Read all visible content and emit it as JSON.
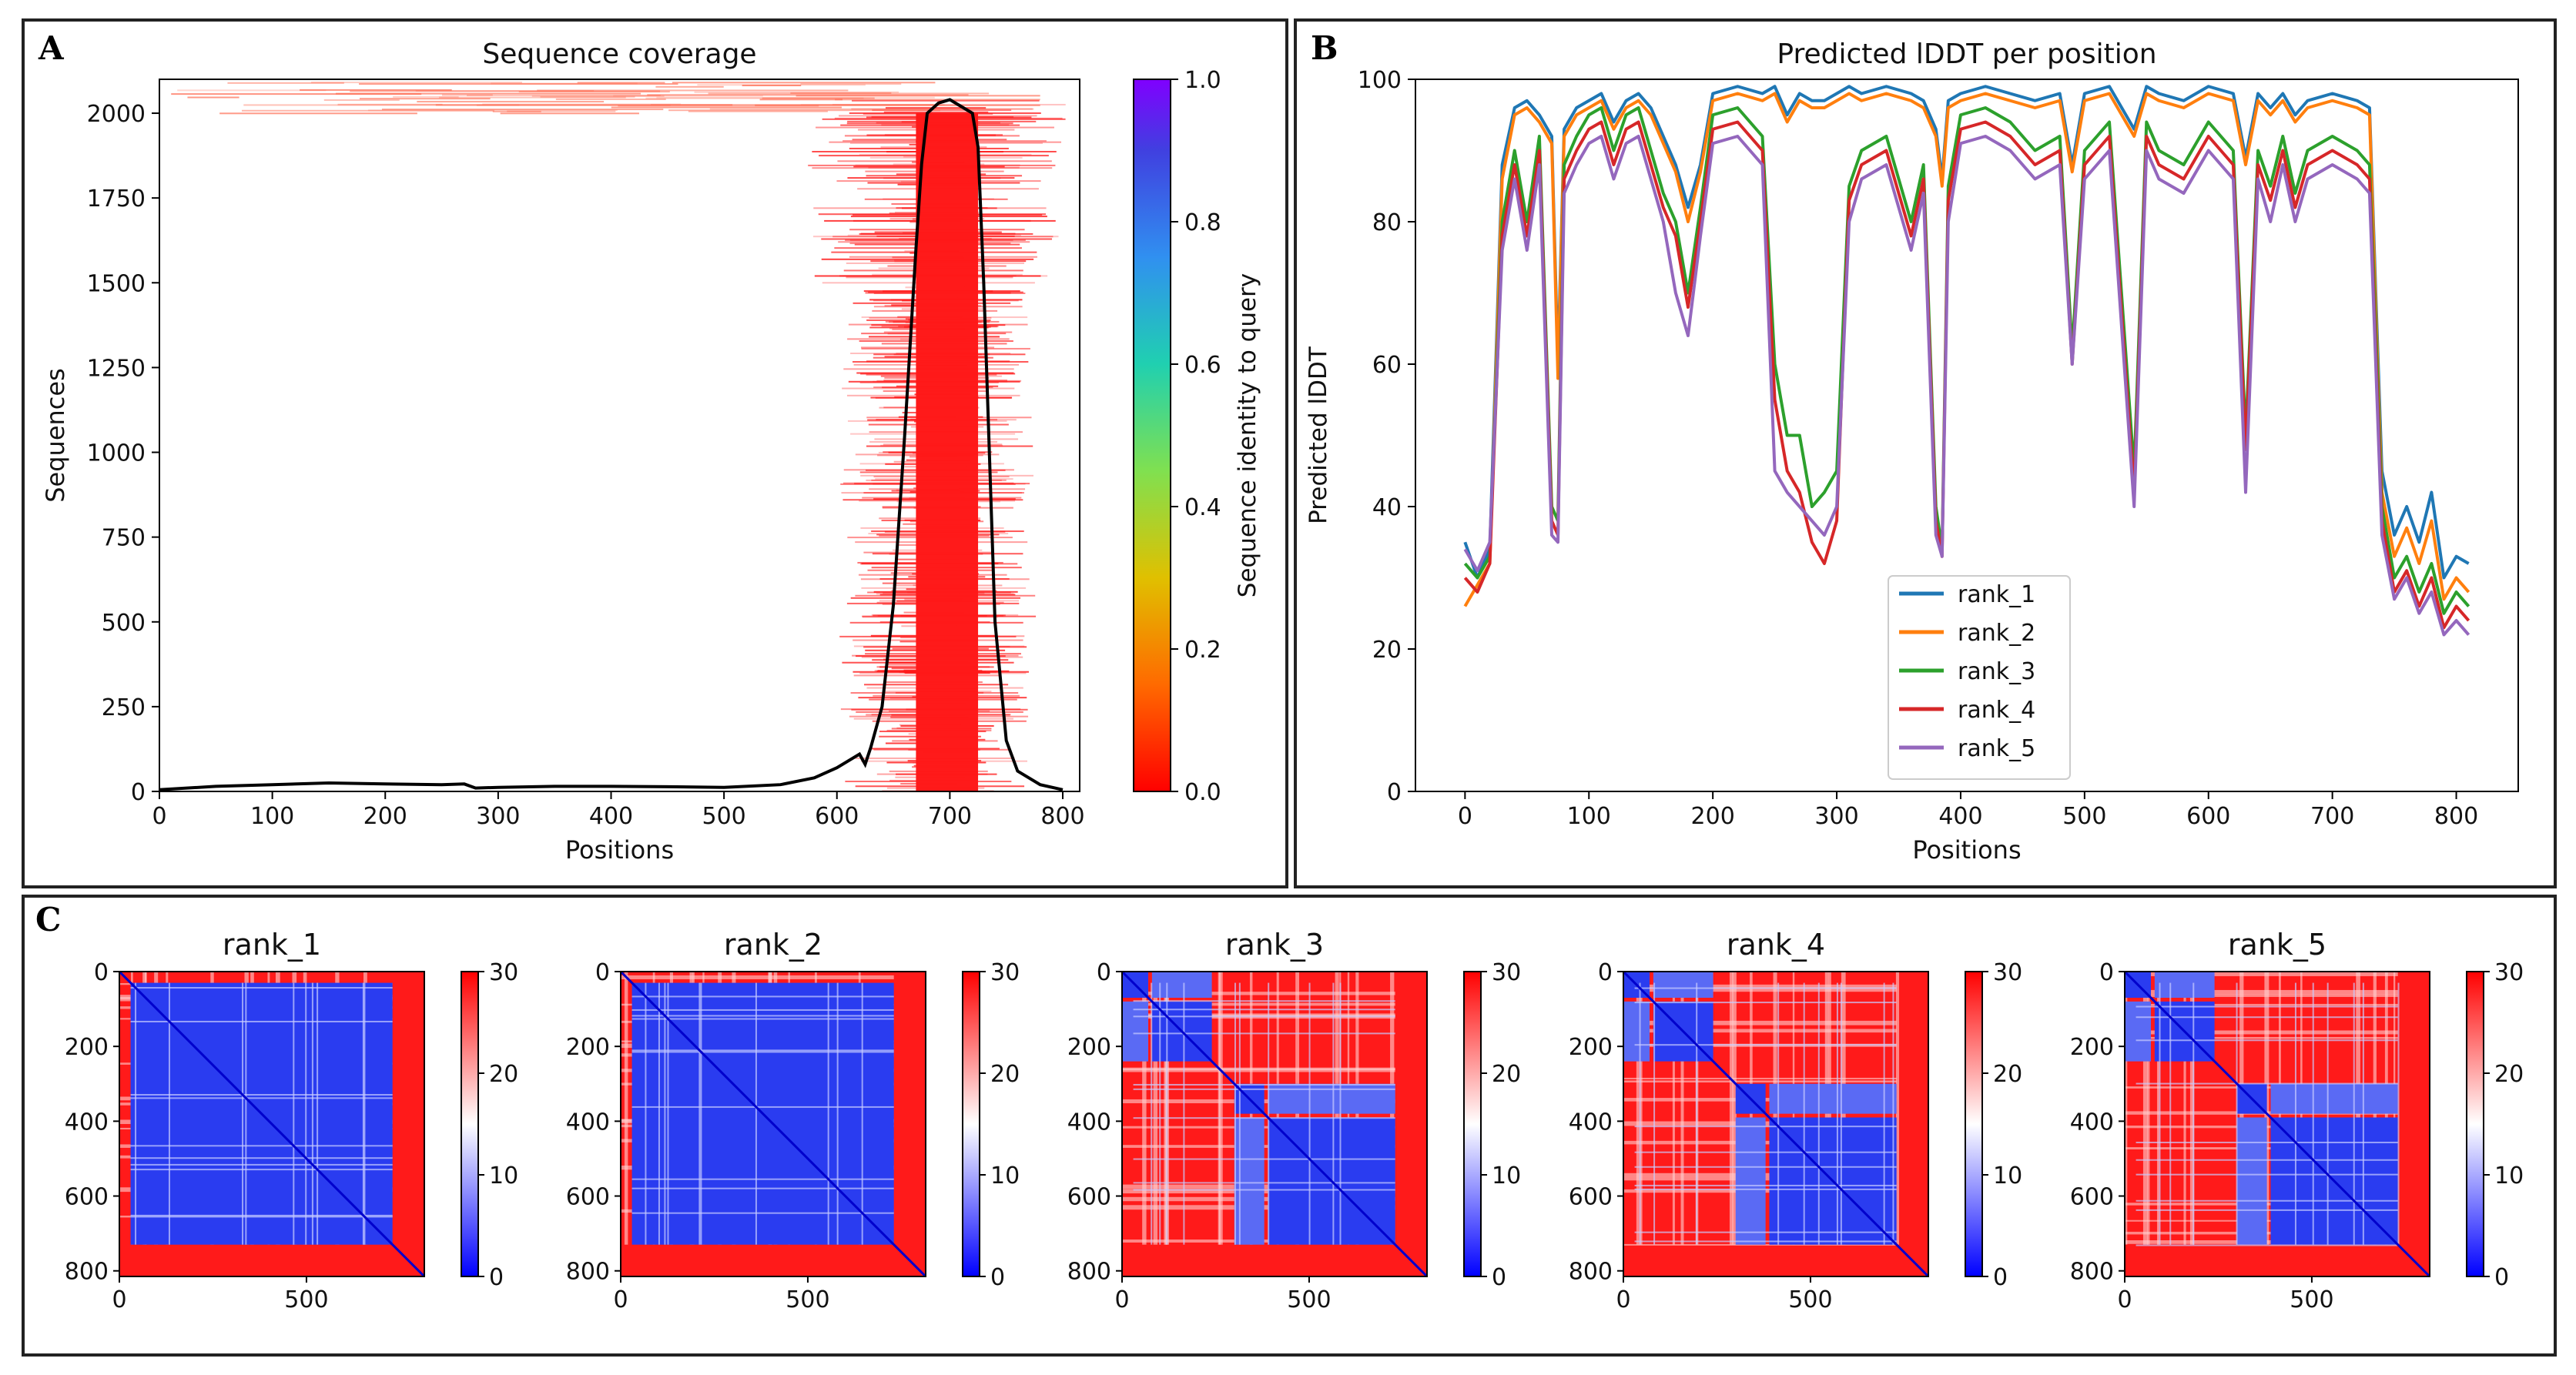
{
  "panels": [
    {
      "letter": "A"
    },
    {
      "letter": "B"
    },
    {
      "letter": "C"
    }
  ],
  "colors": {
    "rank_1": "#1f77b4",
    "rank_2": "#ff7f0e",
    "rank_3": "#2ca02c",
    "rank_4": "#d62728",
    "rank_5": "#9467bd",
    "coverage_line": "#000000",
    "msa_red": "#ff1a1a"
  },
  "chart_data": [
    {
      "type": "heatmap",
      "title": "Sequence coverage",
      "xlabel": "Positions",
      "ylabel": "Sequences",
      "xlim": [
        0,
        815
      ],
      "ylim": [
        0,
        2100
      ],
      "xticks": [
        "0",
        "100",
        "200",
        "300",
        "400",
        "500",
        "600",
        "700",
        "800"
      ],
      "yticks": [
        "0",
        "250",
        "500",
        "750",
        "1000",
        "1250",
        "1500",
        "1750",
        "2000"
      ],
      "colorbar": {
        "label": "Sequence identity to query",
        "range": [
          0.0,
          1.0
        ],
        "ticks": [
          "0.0",
          "0.2",
          "0.4",
          "0.6",
          "0.8",
          "1.0"
        ]
      },
      "coverage_curve": {
        "x": [
          0,
          50,
          100,
          150,
          200,
          250,
          270,
          280,
          300,
          350,
          400,
          450,
          500,
          550,
          580,
          600,
          620,
          625,
          630,
          640,
          650,
          660,
          670,
          675,
          680,
          690,
          700,
          710,
          720,
          725,
          730,
          735,
          740,
          750,
          760,
          780,
          800
        ],
        "y": [
          5,
          15,
          20,
          25,
          22,
          20,
          22,
          10,
          12,
          15,
          15,
          14,
          12,
          20,
          40,
          70,
          110,
          80,
          130,
          250,
          550,
          1050,
          1600,
          1850,
          2000,
          2030,
          2040,
          2020,
          2000,
          1900,
          1500,
          1000,
          500,
          150,
          60,
          20,
          5
        ]
      }
    },
    {
      "type": "line",
      "title": "Predicted lDDT per position",
      "xlabel": "Positions",
      "ylabel": "Predicted lDDT",
      "xlim": [
        -40,
        850
      ],
      "ylim": [
        0,
        100
      ],
      "xticks": [
        "0",
        "100",
        "200",
        "300",
        "400",
        "500",
        "600",
        "700",
        "800"
      ],
      "yticks": [
        "0",
        "20",
        "40",
        "60",
        "80",
        "100"
      ],
      "legend": "center-left",
      "x": [
        0,
        10,
        20,
        30,
        40,
        50,
        60,
        70,
        75,
        80,
        90,
        100,
        110,
        120,
        130,
        140,
        150,
        160,
        170,
        180,
        190,
        200,
        220,
        240,
        250,
        260,
        270,
        280,
        290,
        300,
        310,
        320,
        340,
        360,
        370,
        380,
        385,
        390,
        400,
        420,
        440,
        460,
        480,
        490,
        500,
        520,
        540,
        550,
        560,
        580,
        600,
        620,
        630,
        640,
        650,
        660,
        670,
        680,
        700,
        720,
        730,
        735,
        740,
        750,
        760,
        770,
        780,
        790,
        800,
        810
      ],
      "series": [
        {
          "name": "rank_1",
          "values": [
            35,
            30,
            34,
            88,
            96,
            97,
            95,
            92,
            60,
            93,
            96,
            97,
            98,
            94,
            97,
            98,
            96,
            92,
            88,
            82,
            88,
            98,
            99,
            98,
            99,
            95,
            98,
            97,
            97,
            98,
            99,
            98,
            99,
            98,
            97,
            93,
            86,
            97,
            98,
            99,
            98,
            97,
            98,
            88,
            98,
            99,
            93,
            99,
            98,
            97,
            99,
            98,
            89,
            98,
            96,
            98,
            95,
            97,
            98,
            97,
            96,
            70,
            45,
            36,
            40,
            35,
            42,
            30,
            33,
            32
          ]
        },
        {
          "name": "rank_2",
          "values": [
            26,
            29,
            32,
            86,
            95,
            96,
            94,
            91,
            58,
            92,
            95,
            96,
            97,
            93,
            96,
            97,
            95,
            91,
            87,
            80,
            87,
            97,
            98,
            97,
            98,
            94,
            97,
            96,
            96,
            97,
            98,
            97,
            98,
            97,
            96,
            92,
            85,
            96,
            97,
            98,
            97,
            96,
            97,
            87,
            97,
            98,
            92,
            98,
            97,
            96,
            98,
            97,
            88,
            97,
            95,
            97,
            94,
            96,
            97,
            96,
            95,
            68,
            42,
            33,
            37,
            32,
            38,
            27,
            30,
            28
          ]
        },
        {
          "name": "rank_3",
          "values": [
            32,
            30,
            33,
            80,
            90,
            80,
            92,
            40,
            38,
            88,
            92,
            95,
            96,
            90,
            95,
            96,
            90,
            84,
            80,
            70,
            82,
            95,
            96,
            92,
            60,
            50,
            50,
            40,
            42,
            45,
            85,
            90,
            92,
            80,
            88,
            40,
            34,
            85,
            95,
            96,
            94,
            90,
            92,
            62,
            90,
            94,
            45,
            94,
            90,
            88,
            94,
            90,
            50,
            90,
            85,
            92,
            84,
            90,
            92,
            90,
            88,
            65,
            40,
            30,
            33,
            28,
            32,
            25,
            28,
            26
          ]
        },
        {
          "name": "rank_4",
          "values": [
            30,
            28,
            32,
            78,
            88,
            78,
            90,
            38,
            36,
            86,
            90,
            93,
            94,
            88,
            93,
            94,
            88,
            82,
            78,
            68,
            80,
            93,
            94,
            90,
            55,
            45,
            42,
            35,
            32,
            38,
            83,
            88,
            90,
            78,
            86,
            38,
            33,
            83,
            93,
            94,
            92,
            88,
            90,
            60,
            88,
            92,
            42,
            92,
            88,
            86,
            92,
            88,
            48,
            88,
            83,
            90,
            82,
            88,
            90,
            88,
            86,
            62,
            38,
            28,
            31,
            26,
            30,
            23,
            26,
            24
          ]
        },
        {
          "name": "rank_5",
          "values": [
            34,
            31,
            35,
            76,
            86,
            76,
            88,
            36,
            35,
            84,
            88,
            91,
            92,
            86,
            91,
            92,
            86,
            80,
            70,
            64,
            78,
            91,
            92,
            88,
            45,
            42,
            40,
            38,
            36,
            40,
            80,
            86,
            88,
            76,
            84,
            36,
            33,
            80,
            91,
            92,
            90,
            86,
            88,
            60,
            86,
            90,
            40,
            90,
            86,
            84,
            90,
            86,
            42,
            86,
            80,
            88,
            80,
            86,
            88,
            86,
            84,
            60,
            36,
            27,
            30,
            25,
            28,
            22,
            24,
            22
          ]
        }
      ]
    },
    {
      "type": "heatmap",
      "title": "rank_1",
      "xticks": [
        "0",
        "500"
      ],
      "yticks": [
        "0",
        "200",
        "400",
        "600",
        "800"
      ],
      "colorbar_ticks": [
        "0",
        "10",
        "20",
        "30"
      ],
      "range": [
        0,
        30
      ],
      "length": 815,
      "domains": [
        [
          30,
          730
        ]
      ]
    },
    {
      "type": "heatmap",
      "title": "rank_2",
      "xticks": [
        "0",
        "500"
      ],
      "yticks": [
        "0",
        "200",
        "400",
        "600",
        "800"
      ],
      "colorbar_ticks": [
        "0",
        "10",
        "20",
        "30"
      ],
      "range": [
        0,
        30
      ],
      "length": 815,
      "domains": [
        [
          30,
          730
        ]
      ]
    },
    {
      "type": "heatmap",
      "title": "rank_3",
      "xticks": [
        "0",
        "500"
      ],
      "yticks": [
        "0",
        "200",
        "400",
        "600",
        "800"
      ],
      "colorbar_ticks": [
        "0",
        "10",
        "20",
        "30"
      ],
      "range": [
        0,
        30
      ],
      "length": 815,
      "domains": [
        [
          0,
          70
        ],
        [
          80,
          240
        ],
        [
          300,
          380
        ],
        [
          390,
          730
        ]
      ]
    },
    {
      "type": "heatmap",
      "title": "rank_4",
      "xticks": [
        "0",
        "500"
      ],
      "yticks": [
        "0",
        "200",
        "400",
        "600",
        "800"
      ],
      "colorbar_ticks": [
        "0",
        "10",
        "20",
        "30"
      ],
      "range": [
        0,
        30
      ],
      "length": 815,
      "domains": [
        [
          0,
          70
        ],
        [
          80,
          240
        ],
        [
          300,
          380
        ],
        [
          390,
          730
        ]
      ]
    },
    {
      "type": "heatmap",
      "title": "rank_5",
      "xticks": [
        "0",
        "500"
      ],
      "yticks": [
        "0",
        "200",
        "400",
        "600",
        "800"
      ],
      "colorbar_ticks": [
        "0",
        "10",
        "20",
        "30"
      ],
      "range": [
        0,
        30
      ],
      "length": 815,
      "domains": [
        [
          0,
          70
        ],
        [
          80,
          240
        ],
        [
          300,
          380
        ],
        [
          390,
          730
        ]
      ]
    }
  ]
}
